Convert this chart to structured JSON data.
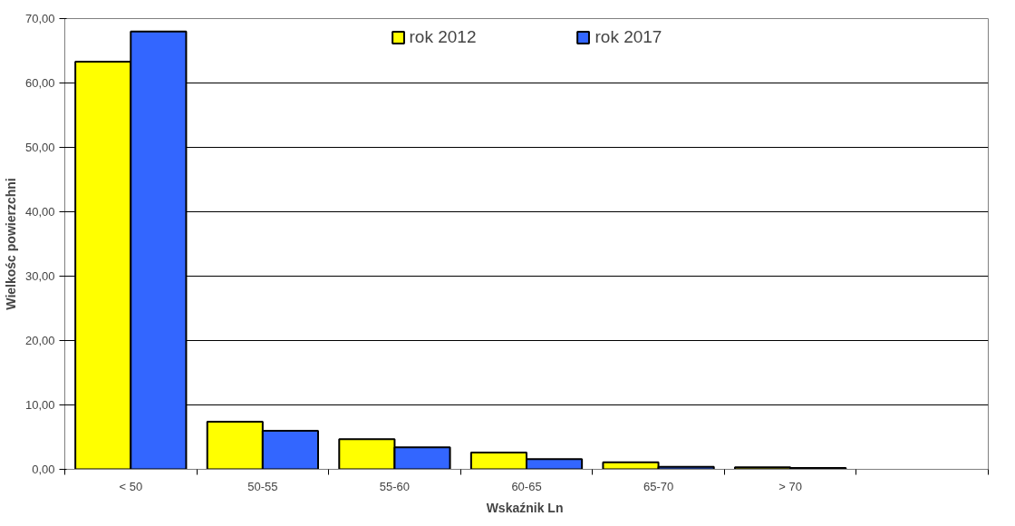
{
  "chart_data": {
    "type": "bar",
    "xlabel": "Wskaźnik  Ln",
    "ylabel": "Wielkośc powierzchni",
    "categories": [
      "< 50",
      "50-55",
      "55-60",
      "60-65",
      "65-70",
      "> 70",
      null
    ],
    "series": [
      {
        "name": "rok 2012",
        "color": "#ffff00",
        "values": [
          63.3,
          7.4,
          4.7,
          2.6,
          1.1,
          0.3,
          null
        ]
      },
      {
        "name": "rok 2017",
        "color": "#3366ff",
        "values": [
          68.0,
          6.0,
          3.4,
          1.6,
          0.4,
          0.2,
          null
        ]
      }
    ],
    "ylim": [
      0,
      70
    ],
    "yticks": [
      {
        "value": 0,
        "label": "0,00"
      },
      {
        "value": 10,
        "label": "10,00"
      },
      {
        "value": 20,
        "label": "20,00"
      },
      {
        "value": 30,
        "label": "30,00"
      },
      {
        "value": 40,
        "label": "40,00"
      },
      {
        "value": 50,
        "label": "50,00"
      },
      {
        "value": 60,
        "label": "60,00"
      },
      {
        "value": 70,
        "label": "70,00"
      }
    ],
    "grid": "y",
    "legend": "top"
  }
}
